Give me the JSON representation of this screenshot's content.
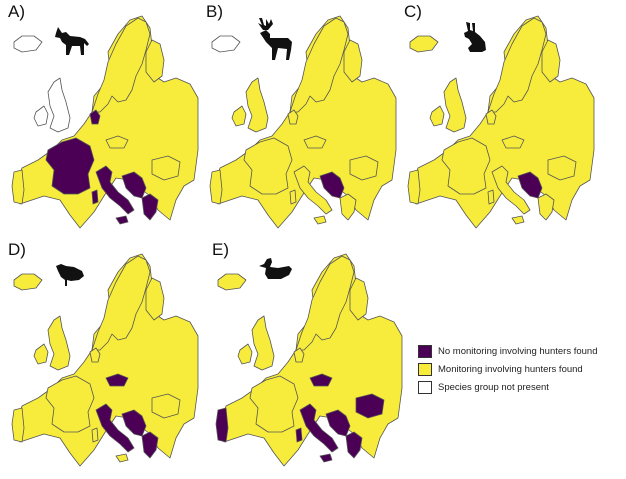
{
  "colors": {
    "no_monitoring": "#4b0055",
    "monitoring": "#f7ec3b",
    "not_present": "#ffffff",
    "border": "#555555"
  },
  "panels": [
    {
      "label": "A)",
      "icon": "wolf-icon",
      "regions": {
        "iceland": "not_present",
        "britain": "not_present",
        "ireland": "not_present",
        "denmark": "no_monitoring",
        "france": "no_monitoring",
        "italy": "no_monitoring",
        "sicily": "no_monitoring",
        "sardinia": "no_monitoring",
        "balkans": "no_monitoring",
        "greece": "no_monitoring",
        "romania": "monitoring",
        "czechia": "monitoring",
        "portugal": "monitoring"
      }
    },
    {
      "label": "B)",
      "icon": "deer-icon",
      "regions": {
        "iceland": "not_present",
        "britain": "monitoring",
        "ireland": "monitoring",
        "denmark": "monitoring",
        "france": "monitoring",
        "italy": "monitoring",
        "sicily": "monitoring",
        "sardinia": "monitoring",
        "balkans": "no_monitoring",
        "greece": "monitoring",
        "romania": "monitoring",
        "czechia": "monitoring",
        "portugal": "monitoring"
      }
    },
    {
      "label": "C)",
      "icon": "hare-icon",
      "regions": {
        "iceland": "monitoring",
        "britain": "monitoring",
        "ireland": "monitoring",
        "denmark": "monitoring",
        "france": "monitoring",
        "italy": "monitoring",
        "sicily": "monitoring",
        "sardinia": "monitoring",
        "balkans": "no_monitoring",
        "greece": "monitoring",
        "romania": "monitoring",
        "czechia": "monitoring",
        "portugal": "monitoring"
      }
    },
    {
      "label": "D)",
      "icon": "grouse-icon",
      "regions": {
        "iceland": "monitoring",
        "britain": "monitoring",
        "ireland": "monitoring",
        "denmark": "monitoring",
        "france": "monitoring",
        "italy": "no_monitoring",
        "sicily": "monitoring",
        "sardinia": "monitoring",
        "balkans": "no_monitoring",
        "greece": "no_monitoring",
        "romania": "monitoring",
        "czechia": "no_monitoring",
        "portugal": "monitoring"
      }
    },
    {
      "label": "E)",
      "icon": "duck-icon",
      "regions": {
        "iceland": "monitoring",
        "britain": "monitoring",
        "ireland": "monitoring",
        "denmark": "monitoring",
        "france": "monitoring",
        "italy": "no_monitoring",
        "sicily": "no_monitoring",
        "sardinia": "no_monitoring",
        "balkans": "no_monitoring",
        "greece": "no_monitoring",
        "romania": "no_monitoring",
        "czechia": "no_monitoring",
        "portugal": "no_monitoring"
      }
    }
  ],
  "legend": [
    {
      "key": "no_monitoring",
      "label": "No monitoring involving hunters found"
    },
    {
      "key": "monitoring",
      "label": "Monitoring involving hunters found"
    },
    {
      "key": "not_present",
      "label": "Species group not present"
    }
  ]
}
